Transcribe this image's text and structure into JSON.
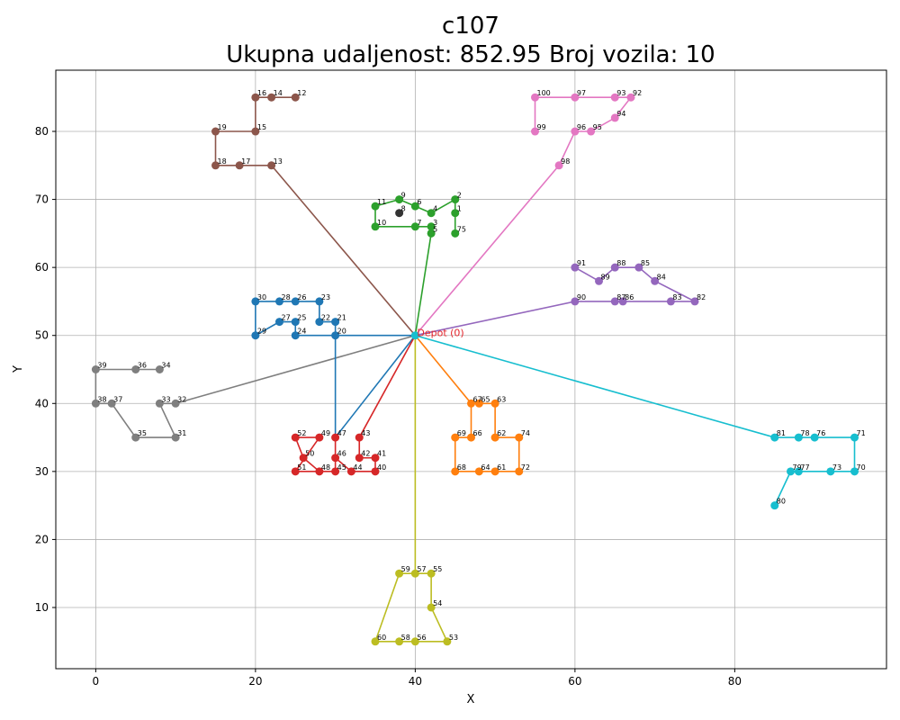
{
  "chart_data": {
    "type": "scatter",
    "title": "c107",
    "subtitle": "Ukupna udaljenost: 852.95    Broj vozila: 10",
    "xlabel": "X",
    "ylabel": "Y",
    "xlim": [
      -5,
      99
    ],
    "ylim": [
      1,
      89
    ],
    "xticks": [
      0,
      20,
      40,
      60,
      80
    ],
    "yticks": [
      10,
      20,
      30,
      40,
      50,
      60,
      70,
      80
    ],
    "grid": true,
    "depot": {
      "label": "Depot (0)",
      "x": 40,
      "y": 50,
      "color": "#e3242b"
    },
    "customers": {
      "1": [
        45,
        68
      ],
      "2": [
        45,
        70
      ],
      "3": [
        42,
        66
      ],
      "4": [
        42,
        68
      ],
      "5": [
        42,
        65
      ],
      "6": [
        40,
        69
      ],
      "7": [
        40,
        66
      ],
      "8": [
        38,
        68
      ],
      "9": [
        38,
        70
      ],
      "10": [
        35,
        66
      ],
      "11": [
        35,
        69
      ],
      "12": [
        25,
        85
      ],
      "13": [
        22,
        75
      ],
      "14": [
        22,
        85
      ],
      "15": [
        20,
        80
      ],
      "16": [
        20,
        85
      ],
      "17": [
        18,
        75
      ],
      "18": [
        15,
        75
      ],
      "19": [
        15,
        80
      ],
      "20": [
        30,
        50
      ],
      "21": [
        30,
        52
      ],
      "22": [
        28,
        52
      ],
      "23": [
        28,
        55
      ],
      "24": [
        25,
        50
      ],
      "25": [
        25,
        52
      ],
      "26": [
        25,
        55
      ],
      "27": [
        23,
        52
      ],
      "28": [
        23,
        55
      ],
      "29": [
        20,
        50
      ],
      "30": [
        20,
        55
      ],
      "31": [
        10,
        35
      ],
      "32": [
        10,
        40
      ],
      "33": [
        8,
        40
      ],
      "34": [
        8,
        45
      ],
      "35": [
        5,
        35
      ],
      "36": [
        5,
        45
      ],
      "37": [
        2,
        40
      ],
      "38": [
        0,
        40
      ],
      "39": [
        0,
        45
      ],
      "40": [
        35,
        30
      ],
      "41": [
        35,
        32
      ],
      "42": [
        33,
        32
      ],
      "43": [
        33,
        35
      ],
      "44": [
        32,
        30
      ],
      "45": [
        30,
        30
      ],
      "46": [
        30,
        32
      ],
      "47": [
        30,
        35
      ],
      "48": [
        28,
        30
      ],
      "49": [
        28,
        35
      ],
      "50": [
        26,
        32
      ],
      "51": [
        25,
        30
      ],
      "52": [
        25,
        35
      ],
      "53": [
        44,
        5
      ],
      "54": [
        42,
        10
      ],
      "55": [
        42,
        15
      ],
      "56": [
        40,
        5
      ],
      "57": [
        40,
        15
      ],
      "58": [
        38,
        5
      ],
      "59": [
        38,
        15
      ],
      "60": [
        35,
        5
      ],
      "61": [
        50,
        30
      ],
      "62": [
        50,
        35
      ],
      "63": [
        50,
        40
      ],
      "64": [
        48,
        30
      ],
      "65": [
        48,
        40
      ],
      "66": [
        47,
        35
      ],
      "67": [
        47,
        40
      ],
      "68": [
        45,
        30
      ],
      "69": [
        45,
        35
      ],
      "70": [
        95,
        30
      ],
      "71": [
        95,
        35
      ],
      "72": [
        53,
        30
      ],
      "73": [
        92,
        30
      ],
      "74": [
        53,
        35
      ],
      "75": [
        45,
        65
      ],
      "76": [
        90,
        35
      ],
      "77": [
        88,
        30
      ],
      "78": [
        88,
        35
      ],
      "79": [
        87,
        30
      ],
      "80": [
        85,
        25
      ],
      "81": [
        85,
        35
      ],
      "82": [
        75,
        55
      ],
      "83": [
        72,
        55
      ],
      "84": [
        70,
        58
      ],
      "85": [
        68,
        60
      ],
      "86": [
        66,
        55
      ],
      "87": [
        65,
        55
      ],
      "88": [
        65,
        60
      ],
      "89": [
        63,
        58
      ],
      "90": [
        60,
        55
      ],
      "91": [
        60,
        60
      ],
      "92": [
        67,
        85
      ],
      "93": [
        65,
        85
      ],
      "94": [
        65,
        82
      ],
      "95": [
        62,
        80
      ],
      "96": [
        60,
        80
      ],
      "97": [
        60,
        85
      ],
      "98": [
        58,
        75
      ],
      "99": [
        55,
        80
      ],
      "100": [
        55,
        85
      ]
    },
    "routes": [
      {
        "color": "#1f77b4",
        "stops": [
          47,
          20,
          24,
          25,
          27,
          29,
          30,
          28,
          26,
          23,
          22,
          21,
          20
        ]
      },
      {
        "color": "#ff7f0e",
        "stops": [
          67,
          65,
          63,
          62,
          74,
          72,
          61,
          64,
          68,
          69,
          66,
          67
        ]
      },
      {
        "color": "#2ca02c",
        "stops": [
          5,
          3,
          7,
          10,
          11,
          9,
          6,
          4,
          2,
          1,
          75
        ]
      },
      {
        "color": "#d62728",
        "stops": [
          43,
          42,
          41,
          40,
          44,
          46,
          45,
          48,
          50,
          52,
          49,
          51,
          48,
          45,
          47
        ]
      },
      {
        "color": "#9467bd",
        "stops": [
          90,
          87,
          86,
          83,
          82,
          84,
          85,
          88,
          89,
          91
        ]
      },
      {
        "color": "#8c564b",
        "stops": [
          13,
          17,
          18,
          19,
          15,
          16,
          14,
          12
        ]
      },
      {
        "color": "#e377c2",
        "stops": [
          98,
          96,
          95,
          94,
          92,
          93,
          97,
          100,
          99
        ]
      },
      {
        "color": "#7f7f7f",
        "stops": [
          32,
          33,
          31,
          35,
          37,
          38,
          39,
          36,
          34
        ]
      },
      {
        "color": "#bcbd22",
        "stops": [
          57,
          55,
          54,
          53,
          56,
          58,
          60,
          59,
          57
        ]
      },
      {
        "color": "#17becf",
        "stops": [
          81,
          78,
          76,
          71,
          70,
          73,
          77,
          79,
          80
        ]
      }
    ],
    "depot_routes": [
      {
        "color": "#1f77b4",
        "stops": [
          47,
          20
        ]
      },
      {
        "color": "#ff7f0e",
        "stops": [
          67
        ]
      },
      {
        "color": "#2ca02c",
        "stops": [
          5
        ]
      },
      {
        "color": "#d62728",
        "stops": [
          43
        ]
      },
      {
        "color": "#9467bd",
        "stops": [
          90
        ]
      },
      {
        "color": "#8c564b",
        "stops": [
          13
        ]
      },
      {
        "color": "#e377c2",
        "stops": [
          98
        ]
      },
      {
        "color": "#7f7f7f",
        "stops": [
          32
        ]
      },
      {
        "color": "#bcbd22",
        "stops": [
          57
        ]
      },
      {
        "color": "#17becf",
        "stops": [
          81
        ]
      }
    ]
  }
}
